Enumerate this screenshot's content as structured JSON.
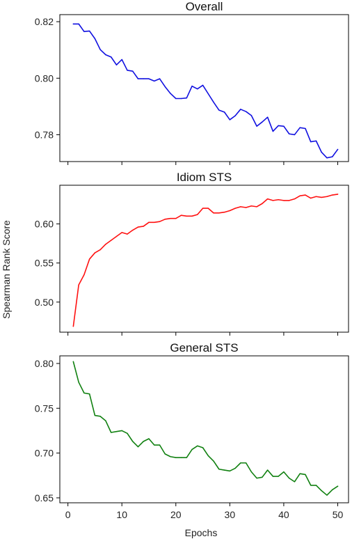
{
  "figure": {
    "ylabel": "Spearman Rank Score",
    "xlabel": "Epochs"
  },
  "chart_data": [
    {
      "type": "line",
      "title": "Overall",
      "color": "#1010e0",
      "x_ticks": [
        0,
        10,
        20,
        30,
        40,
        50
      ],
      "x_tick_labels_shown": false,
      "xlim": [
        -1.5,
        52
      ],
      "ylim": [
        0.7705,
        0.8225
      ],
      "y_ticks": [
        0.78,
        0.8,
        0.82
      ],
      "y_tick_labels": [
        "0.78",
        "0.80",
        "0.82"
      ],
      "series": [
        {
          "x": [
            1,
            2,
            3,
            4,
            5,
            6,
            7,
            8,
            9,
            10,
            11,
            12,
            13,
            14,
            15,
            16,
            17,
            18,
            19,
            20,
            21,
            22,
            23,
            24,
            25,
            26,
            27,
            28,
            29,
            30,
            31,
            32,
            33,
            34,
            35,
            36,
            37,
            38,
            39,
            40,
            41,
            42,
            43,
            44,
            45,
            46,
            47,
            48,
            49,
            50
          ],
          "values": [
            0.8192,
            0.8192,
            0.8165,
            0.8167,
            0.814,
            0.8101,
            0.8083,
            0.8075,
            0.8047,
            0.8066,
            0.8028,
            0.8025,
            0.7998,
            0.7998,
            0.7998,
            0.799,
            0.7998,
            0.797,
            0.7946,
            0.7928,
            0.7928,
            0.793,
            0.7972,
            0.7962,
            0.7975,
            0.7945,
            0.7915,
            0.7887,
            0.788,
            0.7853,
            0.7867,
            0.789,
            0.7882,
            0.7868,
            0.783,
            0.7845,
            0.7862,
            0.7812,
            0.7832,
            0.783,
            0.7803,
            0.78,
            0.7825,
            0.7822,
            0.7775,
            0.7778,
            0.7738,
            0.7718,
            0.7722,
            0.7748
          ]
        }
      ]
    },
    {
      "type": "line",
      "title": "Idiom STS",
      "color": "#ff1010",
      "x_ticks": [
        0,
        10,
        20,
        30,
        40,
        50
      ],
      "x_tick_labels_shown": false,
      "xlim": [
        -1.5,
        52
      ],
      "ylim": [
        0.4615,
        0.6495
      ],
      "y_ticks": [
        0.5,
        0.55,
        0.6
      ],
      "y_tick_labels": [
        "0.50",
        "0.55",
        "0.60"
      ],
      "series": [
        {
          "x": [
            1,
            2,
            3,
            4,
            5,
            6,
            7,
            8,
            9,
            10,
            11,
            12,
            13,
            14,
            15,
            16,
            17,
            18,
            19,
            20,
            21,
            22,
            23,
            24,
            25,
            26,
            27,
            28,
            29,
            30,
            31,
            32,
            33,
            34,
            35,
            36,
            37,
            38,
            39,
            40,
            41,
            42,
            43,
            44,
            45,
            46,
            47,
            48,
            49,
            50
          ],
          "values": [
            0.469,
            0.522,
            0.535,
            0.555,
            0.563,
            0.567,
            0.574,
            0.579,
            0.584,
            0.589,
            0.587,
            0.592,
            0.596,
            0.597,
            0.602,
            0.602,
            0.603,
            0.606,
            0.607,
            0.607,
            0.611,
            0.61,
            0.61,
            0.612,
            0.62,
            0.62,
            0.614,
            0.614,
            0.615,
            0.617,
            0.62,
            0.622,
            0.621,
            0.623,
            0.622,
            0.626,
            0.632,
            0.63,
            0.631,
            0.63,
            0.63,
            0.632,
            0.636,
            0.637,
            0.633,
            0.635,
            0.634,
            0.635,
            0.637,
            0.638
          ]
        }
      ]
    },
    {
      "type": "line",
      "title": "General STS",
      "color": "#108010",
      "x_ticks": [
        0,
        10,
        20,
        30,
        40,
        50
      ],
      "x_tick_labels": [
        "0",
        "10",
        "20",
        "30",
        "40",
        "50"
      ],
      "x_tick_labels_shown": true,
      "xlim": [
        -1.5,
        52
      ],
      "ylim": [
        0.6445,
        0.8085
      ],
      "y_ticks": [
        0.65,
        0.7,
        0.75,
        0.8
      ],
      "y_tick_labels": [
        "0.65",
        "0.70",
        "0.75",
        "0.80"
      ],
      "series": [
        {
          "x": [
            1,
            2,
            3,
            4,
            5,
            6,
            7,
            8,
            9,
            10,
            11,
            12,
            13,
            14,
            15,
            16,
            17,
            18,
            19,
            20,
            21,
            22,
            23,
            24,
            25,
            26,
            27,
            28,
            29,
            30,
            31,
            32,
            33,
            34,
            35,
            36,
            37,
            38,
            39,
            40,
            41,
            42,
            43,
            44,
            45,
            46,
            47,
            48,
            49,
            50
          ],
          "values": [
            0.802,
            0.779,
            0.767,
            0.766,
            0.742,
            0.741,
            0.736,
            0.723,
            0.724,
            0.725,
            0.722,
            0.713,
            0.707,
            0.713,
            0.716,
            0.709,
            0.709,
            0.699,
            0.696,
            0.695,
            0.695,
            0.695,
            0.704,
            0.708,
            0.706,
            0.697,
            0.691,
            0.682,
            0.681,
            0.68,
            0.683,
            0.689,
            0.689,
            0.679,
            0.672,
            0.673,
            0.681,
            0.674,
            0.674,
            0.679,
            0.672,
            0.668,
            0.677,
            0.676,
            0.664,
            0.664,
            0.658,
            0.653,
            0.659,
            0.663
          ]
        }
      ]
    }
  ]
}
